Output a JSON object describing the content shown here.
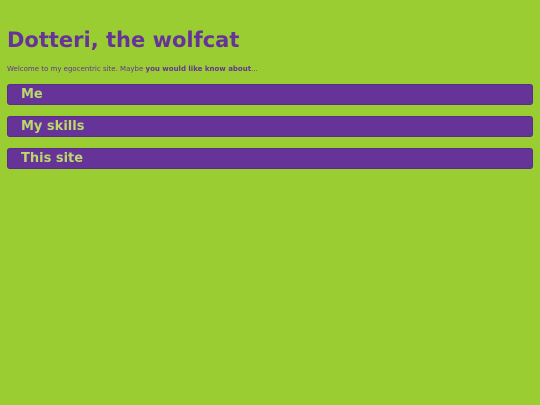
{
  "header": {
    "title": "Dotteri, the wolfcat"
  },
  "intro": {
    "text_before": "Welcome to my egocentric site. Maybe ",
    "emphasis": "you would like know about",
    "text_after": "..."
  },
  "nav": {
    "items": [
      {
        "label": "Me"
      },
      {
        "label": "My skills"
      },
      {
        "label": "This site"
      }
    ]
  },
  "colors": {
    "background": "#9acd32",
    "accent": "#663399",
    "button_text": "#bcd86a"
  }
}
